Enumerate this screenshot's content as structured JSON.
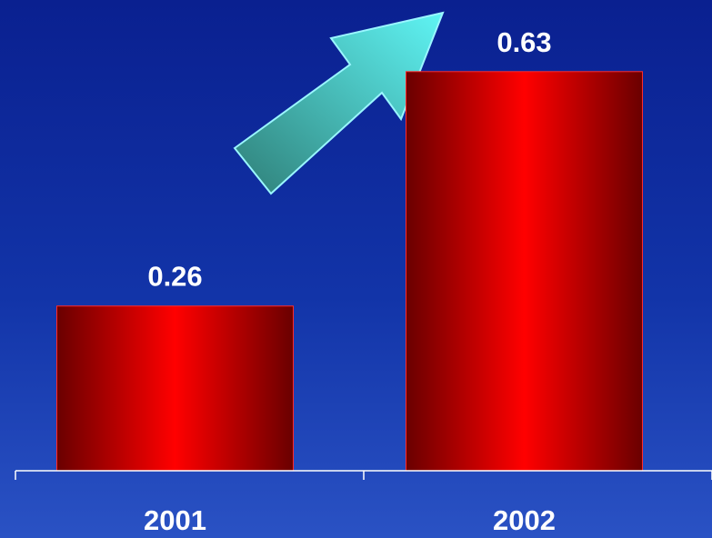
{
  "chart_data": {
    "type": "bar",
    "categories": [
      "2001",
      "2002"
    ],
    "values": [
      0.26,
      0.63
    ],
    "value_labels": [
      "0.26",
      "0.63"
    ],
    "title": "",
    "xlabel": "",
    "ylabel": "",
    "ylim": [
      0,
      0.7
    ],
    "grid": false,
    "legend": "none",
    "annotation": "upward-trend-arrow-icon"
  },
  "colors": {
    "bar_dark": "#6a0000",
    "bar_bright": "#ff0000",
    "arrow_dark": "#2f7f78",
    "arrow_light": "#5ff4f4",
    "arrow_outline": "#9af6ff",
    "axis": "#ffffff",
    "text": "#ffffff"
  }
}
